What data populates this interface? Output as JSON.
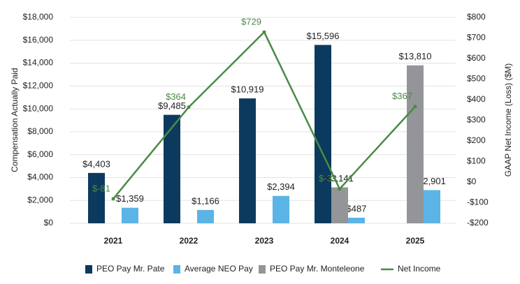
{
  "chart_data": {
    "type": "bar",
    "categories": [
      "2021",
      "2022",
      "2023",
      "2024",
      "2025"
    ],
    "y_label": "Compensation Actually Paid",
    "y2_label": "GAAP Net Income (Loss) ($M)",
    "ylim": [
      0,
      18000
    ],
    "yticks": [
      {
        "value": 0,
        "label": "$0"
      },
      {
        "value": 2000,
        "label": "$2,000"
      },
      {
        "value": 4000,
        "label": "$4,000"
      },
      {
        "value": 6000,
        "label": "$6,000"
      },
      {
        "value": 8000,
        "label": "$8,000"
      },
      {
        "value": 10000,
        "label": "$10,000"
      },
      {
        "value": 12000,
        "label": "$12,000"
      },
      {
        "value": 14000,
        "label": "$14,000"
      },
      {
        "value": 16000,
        "label": "$16,000"
      },
      {
        "value": 18000,
        "label": "$18,000"
      }
    ],
    "y2lim": [
      -200,
      800
    ],
    "y2ticks": [
      {
        "value": -200,
        "label": "-$200"
      },
      {
        "value": -100,
        "label": "-$100"
      },
      {
        "value": 0,
        "label": "$0"
      },
      {
        "value": 100,
        "label": "$100"
      },
      {
        "value": 200,
        "label": "$200"
      },
      {
        "value": 300,
        "label": "$300"
      },
      {
        "value": 400,
        "label": "$400"
      },
      {
        "value": 500,
        "label": "$500"
      },
      {
        "value": 600,
        "label": "$600"
      },
      {
        "value": 700,
        "label": "$700"
      },
      {
        "value": 800,
        "label": "$800"
      }
    ],
    "grid": true,
    "legend": "bottom",
    "series": [
      {
        "name": "PEO Pay Mr. Pate",
        "type": "bar",
        "color": "#0b3a5e",
        "values": [
          4403,
          9485,
          10919,
          15596,
          null
        ],
        "value_labels": [
          "$4,403",
          "$9,485",
          "$10,919",
          "$15,596",
          null
        ]
      },
      {
        "name": "Average NEO Pay",
        "type": "bar",
        "color": "#5bb4e5",
        "values": [
          1359,
          1166,
          2394,
          487,
          2901
        ],
        "value_labels": [
          "$1,359",
          "$1,166",
          "$2,394",
          "$487",
          "$2,901"
        ]
      },
      {
        "name": "PEO Pay Mr. Monteleone",
        "type": "bar",
        "color": "#939598",
        "values": [
          null,
          null,
          null,
          3141,
          13810
        ],
        "value_labels": [
          null,
          null,
          null,
          "$3,141",
          "$13,810"
        ]
      },
      {
        "name": "Net Income",
        "type": "line",
        "axis": "y2",
        "color": "#4a8a46",
        "values": [
          -81,
          364,
          729,
          -33,
          367
        ],
        "value_labels": [
          "$-81",
          "$364",
          "$729",
          "$-33",
          "$367"
        ]
      }
    ]
  }
}
